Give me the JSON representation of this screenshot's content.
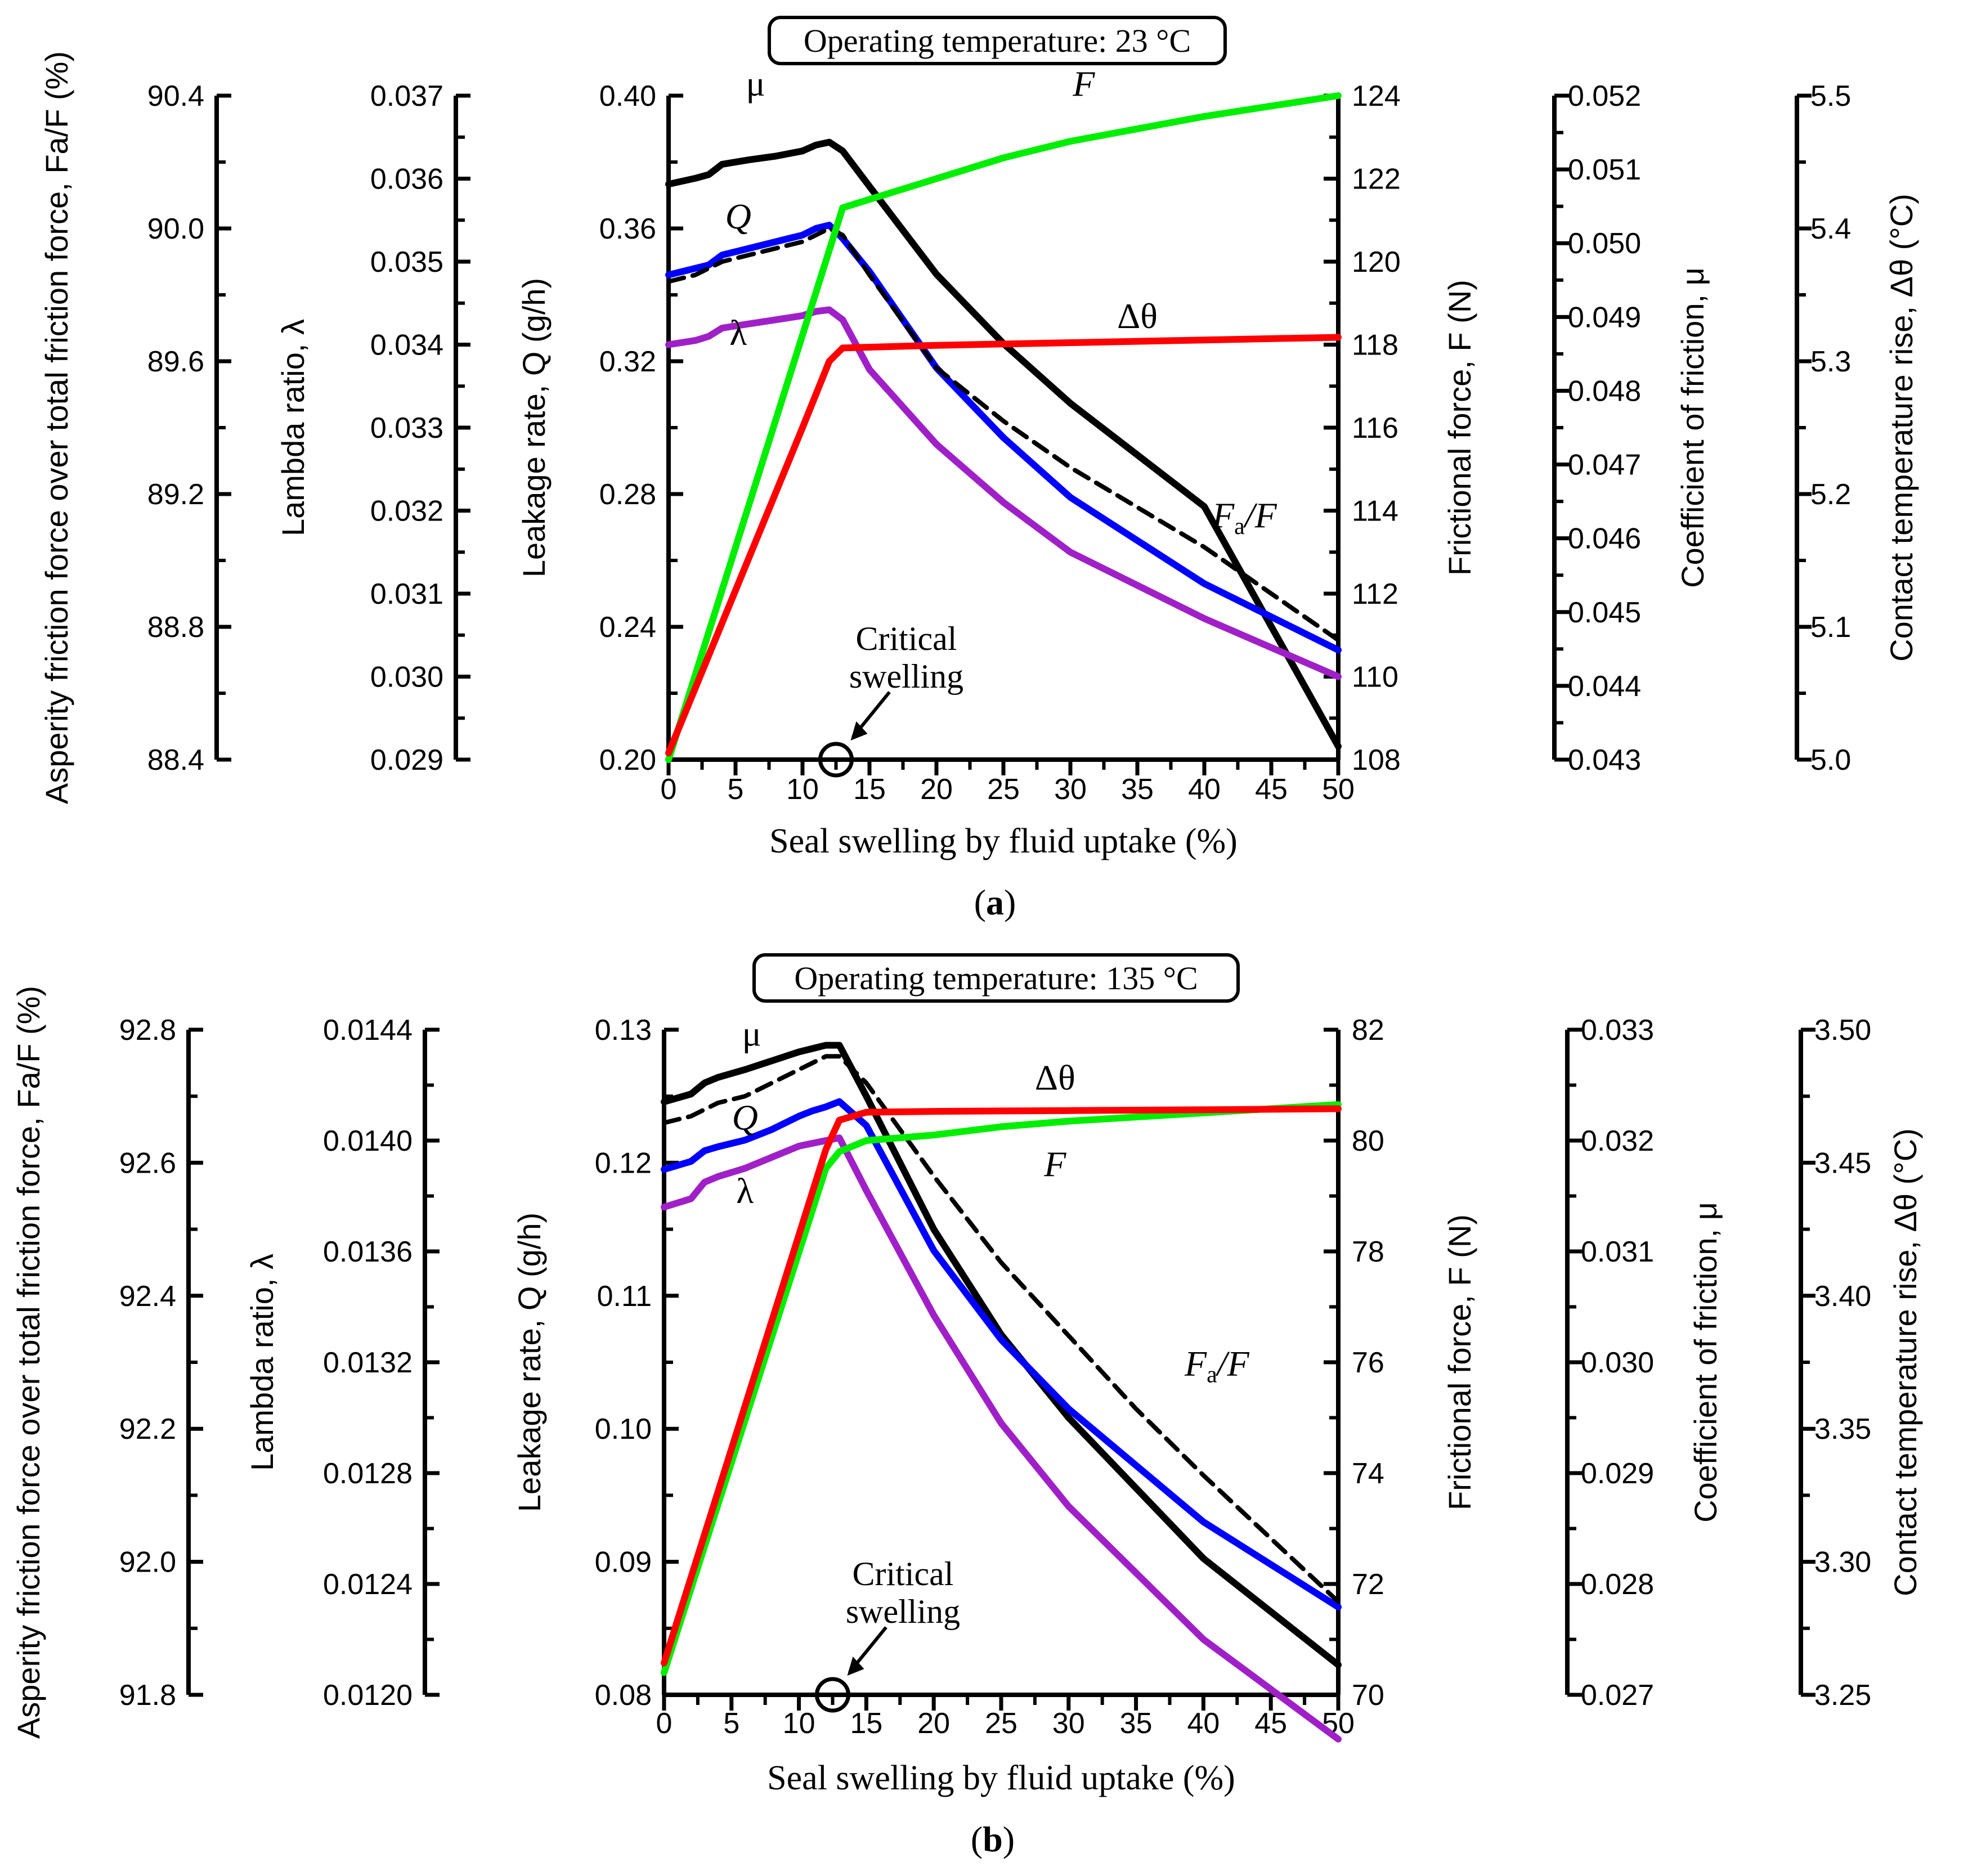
{
  "chart_data": [
    {
      "type": "line",
      "panel_label": "a",
      "title": "Operating temperature: 23 °C",
      "xlabel": "Seal swelling by fluid uptake (%)",
      "x_ticks": [
        "0",
        "5",
        "10",
        "15",
        "20",
        "25",
        "30",
        "35",
        "40",
        "45",
        "50"
      ],
      "xlim": [
        0,
        50
      ],
      "critical_label_line1": "Critical",
      "critical_label_line2": "swelling",
      "critical_x": 12.5,
      "axes": [
        {
          "key": "FaF",
          "title": "Asperity friction force over total friction force, Fa/F (%)",
          "lim": [
            88.4,
            90.4
          ],
          "ticks": [
            "88.4",
            "88.8",
            "89.2",
            "89.6",
            "90.0",
            "90.4"
          ]
        },
        {
          "key": "lambda",
          "title": "Lambda ratio, λ",
          "lim": [
            0.029,
            0.037
          ],
          "ticks": [
            "0.029",
            "0.030",
            "0.031",
            "0.032",
            "0.033",
            "0.034",
            "0.035",
            "0.036",
            "0.037"
          ]
        },
        {
          "key": "Q",
          "title": "Leakage rate, Q (g/h)",
          "lim": [
            0.2,
            0.4
          ],
          "ticks": [
            "0.20",
            "0.24",
            "0.28",
            "0.32",
            "0.36",
            "0.40"
          ]
        },
        {
          "key": "F",
          "title": "Frictional force, F (N)",
          "lim": [
            108,
            124
          ],
          "ticks": [
            "108",
            "110",
            "112",
            "114",
            "116",
            "118",
            "120",
            "122",
            "124"
          ]
        },
        {
          "key": "mu",
          "title": "Coefficient of friction, μ",
          "lim": [
            0.043,
            0.052
          ],
          "ticks": [
            "0.043",
            "0.044",
            "0.045",
            "0.046",
            "0.047",
            "0.048",
            "0.049",
            "0.050",
            "0.051",
            "0.052"
          ]
        },
        {
          "key": "dtheta",
          "title": "Contact temperature rise, Δθ (°C)",
          "lim": [
            5.0,
            5.5
          ],
          "ticks": [
            "5.0",
            "5.1",
            "5.2",
            "5.3",
            "5.4",
            "5.5"
          ]
        }
      ],
      "series": [
        {
          "name": "μ",
          "axis": "mu",
          "color": "#000000",
          "dash": false,
          "x": [
            0,
            2,
            3,
            4,
            6,
            8,
            10,
            11,
            12,
            13,
            15,
            20,
            25,
            30,
            40,
            50
          ],
          "y": [
            0.0508,
            0.05088,
            0.05093,
            0.05107,
            0.05113,
            0.05118,
            0.05125,
            0.05133,
            0.05137,
            0.05125,
            0.05077,
            0.04958,
            0.04864,
            0.04783,
            0.04643,
            0.04318
          ]
        },
        {
          "name": "Q",
          "axis": "Q",
          "color": "#0000ff",
          "dash": false,
          "x": [
            0,
            3,
            4,
            6,
            8,
            10,
            11,
            12,
            13,
            15,
            20,
            25,
            30,
            40,
            50
          ],
          "y": [
            0.346,
            0.349,
            0.352,
            0.354,
            0.356,
            0.358,
            0.36,
            0.361,
            0.357,
            0.347,
            0.318,
            0.297,
            0.279,
            0.253,
            0.233
          ]
        },
        {
          "name": "Fa/F",
          "axis": "FaF",
          "color": "#000000",
          "dash": true,
          "x": [
            0,
            2,
            4,
            6,
            8,
            10,
            11,
            12,
            13,
            15,
            20,
            25,
            30,
            35,
            40,
            50
          ],
          "y": [
            89.84,
            89.86,
            89.9,
            89.92,
            89.94,
            89.96,
            89.98,
            90.0,
            89.98,
            89.86,
            89.58,
            89.42,
            89.28,
            89.16,
            89.04,
            88.76
          ]
        },
        {
          "name": "λ",
          "axis": "lambda",
          "color": "#a020c8",
          "dash": false,
          "x": [
            0,
            2,
            3,
            4,
            6,
            8,
            10,
            11,
            12,
            13,
            15,
            20,
            25,
            30,
            40,
            50
          ],
          "y": [
            0.034,
            0.03405,
            0.0341,
            0.0342,
            0.03425,
            0.0343,
            0.03435,
            0.0344,
            0.03442,
            0.0343,
            0.0337,
            0.0328,
            0.0321,
            0.0315,
            0.0307,
            0.03
          ]
        },
        {
          "name": "F",
          "axis": "F",
          "color": "#00ee00",
          "dash": false,
          "x": [
            0,
            13,
            15,
            20,
            25,
            30,
            40,
            50
          ],
          "y": [
            108,
            121.3,
            121.5,
            122.0,
            122.5,
            122.9,
            123.5,
            124.0
          ]
        },
        {
          "name": "Δθ",
          "axis": "dtheta",
          "color": "#ff0000",
          "dash": false,
          "x": [
            0,
            10,
            12,
            13,
            20,
            30,
            40,
            50
          ],
          "y": [
            5.005,
            5.25,
            5.3,
            5.31,
            5.312,
            5.314,
            5.316,
            5.318
          ]
        }
      ],
      "curve_labels": [
        {
          "text": "μ",
          "x": 6.5,
          "axis": "Q",
          "y": 0.4
        },
        {
          "text": "F",
          "x": 31,
          "axis": "Q",
          "y": 0.4
        },
        {
          "text": "Q",
          "x": 5.2,
          "axis": "Q",
          "y": 0.36
        },
        {
          "text": "λ",
          "x": 5.2,
          "axis": "Q",
          "y": 0.325
        },
        {
          "text": "Δθ",
          "x": 35,
          "axis": "Q",
          "y": 0.33
        },
        {
          "text": "Fa/F",
          "x": 43,
          "axis": "Q",
          "y": 0.27
        }
      ]
    },
    {
      "type": "line",
      "panel_label": "b",
      "title": "Operating temperature: 135 °C",
      "xlabel": "Seal swelling by fluid uptake (%)",
      "x_ticks": [
        "0",
        "5",
        "10",
        "15",
        "20",
        "25",
        "30",
        "35",
        "40",
        "45",
        "50"
      ],
      "xlim": [
        0,
        50
      ],
      "critical_label_line1": "Critical",
      "critical_label_line2": "swelling",
      "critical_x": 12.5,
      "axes": [
        {
          "key": "FaF",
          "title": "Asperity friction force over total friction force, Fa/F (%)",
          "lim": [
            91.8,
            92.8
          ],
          "ticks": [
            "91.8",
            "92.0",
            "92.2",
            "92.4",
            "92.6",
            "92.8"
          ]
        },
        {
          "key": "lambda",
          "title": "Lambda ratio, λ",
          "lim": [
            0.012,
            0.0144
          ],
          "ticks": [
            "0.0120",
            "0.0124",
            "0.0128",
            "0.0132",
            "0.0136",
            "0.0140",
            "0.0144"
          ]
        },
        {
          "key": "Q",
          "title": "Leakage rate, Q (g/h)",
          "lim": [
            0.08,
            0.13
          ],
          "ticks": [
            "0.08",
            "0.09",
            "0.10",
            "0.11",
            "0.12",
            "0.13"
          ]
        },
        {
          "key": "F",
          "title": "Frictional force, F (N)",
          "lim": [
            70,
            82
          ],
          "ticks": [
            "70",
            "72",
            "74",
            "76",
            "78",
            "80",
            "82"
          ]
        },
        {
          "key": "mu",
          "title": "Coefficient of friction, μ",
          "lim": [
            0.027,
            0.033
          ],
          "ticks": [
            "0.027",
            "0.028",
            "0.029",
            "0.030",
            "0.031",
            "0.032",
            "0.033"
          ]
        },
        {
          "key": "dtheta",
          "title": "Contact temperature rise, Δθ (°C)",
          "lim": [
            3.25,
            3.5
          ],
          "ticks": [
            "3.25",
            "3.30",
            "3.35",
            "3.40",
            "3.45",
            "3.50"
          ]
        }
      ],
      "series": [
        {
          "name": "μ",
          "axis": "mu",
          "color": "#000000",
          "dash": false,
          "x": [
            0,
            2,
            3,
            4,
            6,
            8,
            10,
            11,
            12,
            13,
            15,
            20,
            25,
            30,
            40,
            50
          ],
          "y": [
            0.03235,
            0.03242,
            0.03252,
            0.03257,
            0.03264,
            0.03272,
            0.0328,
            0.03283,
            0.03286,
            0.03286,
            0.0324,
            0.0312,
            0.03025,
            0.0295,
            0.02823,
            0.02727
          ]
        },
        {
          "name": "Q",
          "axis": "Q",
          "color": "#0000ff",
          "dash": false,
          "x": [
            0,
            2,
            3,
            4,
            6,
            8,
            10,
            11,
            12,
            13,
            15,
            20,
            25,
            30,
            40,
            50
          ],
          "y": [
            0.1195,
            0.1201,
            0.1209,
            0.1212,
            0.1217,
            0.1225,
            0.1235,
            0.1239,
            0.1242,
            0.1246,
            0.1228,
            0.1134,
            0.1067,
            0.1015,
            0.093,
            0.0866
          ]
        },
        {
          "name": "Fa/F",
          "axis": "FaF",
          "color": "#000000",
          "dash": true,
          "x": [
            0,
            2,
            4,
            6,
            8,
            10,
            11,
            12,
            13,
            15,
            20,
            25,
            30,
            35,
            40,
            50
          ],
          "y": [
            92.66,
            92.67,
            92.69,
            92.7,
            92.72,
            92.74,
            92.75,
            92.76,
            92.76,
            92.72,
            92.58,
            92.45,
            92.34,
            92.23,
            92.13,
            91.94
          ]
        },
        {
          "name": "λ",
          "axis": "lambda",
          "color": "#a020c8",
          "dash": false,
          "x": [
            0,
            2,
            3,
            4,
            6,
            8,
            10,
            11,
            12,
            13,
            15,
            20,
            25,
            30,
            40,
            50
          ],
          "y": [
            0.01376,
            0.01379,
            0.01385,
            0.01387,
            0.0139,
            0.01394,
            0.01398,
            0.01399,
            0.014,
            0.01401,
            0.01382,
            0.01337,
            0.01298,
            0.01268,
            0.0122,
            0.01184
          ]
        },
        {
          "name": "F",
          "axis": "F",
          "color": "#00ee00",
          "dash": false,
          "x": [
            0,
            12,
            13,
            15,
            20,
            25,
            30,
            40,
            50
          ],
          "y": [
            70.4,
            79.5,
            79.8,
            80.0,
            80.1,
            80.25,
            80.35,
            80.5,
            80.65
          ]
        },
        {
          "name": "Δθ",
          "axis": "dtheta",
          "color": "#ff0000",
          "dash": false,
          "x": [
            0,
            12,
            13,
            15,
            20,
            30,
            40,
            50
          ],
          "y": [
            3.262,
            3.455,
            3.466,
            3.469,
            3.4693,
            3.4696,
            3.4699,
            3.4703
          ]
        }
      ],
      "curve_labels": [
        {
          "text": "μ",
          "x": 6.5,
          "axis": "Q",
          "y": 0.1288
        },
        {
          "text": "Δθ",
          "x": 29,
          "axis": "Q",
          "y": 0.1255
        },
        {
          "text": "Q",
          "x": 6,
          "axis": "Q",
          "y": 0.1225
        },
        {
          "text": "F",
          "x": 29,
          "axis": "Q",
          "y": 0.119
        },
        {
          "text": "λ",
          "x": 6,
          "axis": "Q",
          "y": 0.117
        },
        {
          "text": "Fa/F",
          "x": 41,
          "axis": "Q",
          "y": 0.104
        }
      ]
    }
  ]
}
